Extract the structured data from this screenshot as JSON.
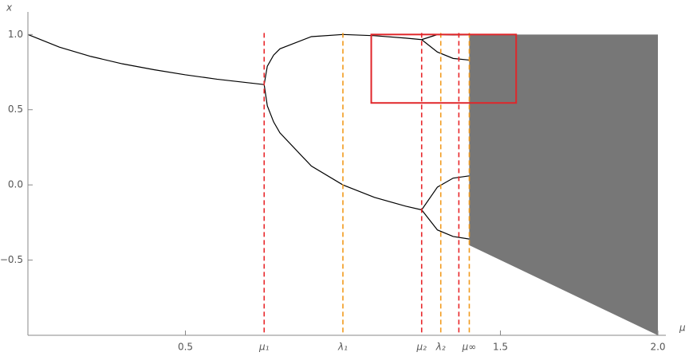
{
  "chart_data": {
    "type": "line",
    "x_label": "μ",
    "y_label": "x",
    "xlim": [
      0,
      2
    ],
    "ylim": [
      -1,
      1.15
    ],
    "xticks": [
      0.5,
      1.5,
      {
        "value": 2,
        "label": "2.0"
      }
    ],
    "yticks": [
      {
        "value": -0.5,
        "label": "−0.5"
      },
      {
        "value": 0,
        "label": "0.0"
      },
      0.5,
      {
        "value": 1,
        "label": "1.0"
      }
    ],
    "series": [
      {
        "color": "#000000",
        "x": [
          0,
          0.1,
          0.2,
          0.3,
          0.4,
          0.5,
          0.6,
          0.75
        ],
        "values": [
          1,
          0.916,
          0.854,
          0.805,
          0.766,
          0.732,
          0.703,
          0.667
        ]
      },
      {
        "color": "#000000",
        "x": [
          0.75,
          0.76,
          0.78,
          0.8,
          0.9,
          1,
          1.1,
          1.2,
          1.25
        ],
        "values": [
          0.667,
          0.789,
          0.863,
          0.905,
          0.986,
          1,
          0.992,
          0.976,
          0.966
        ]
      },
      {
        "color": "#000000",
        "x": [
          0.75,
          0.76,
          0.78,
          0.8,
          0.9,
          1,
          1.1,
          1.2,
          1.25
        ],
        "values": [
          0.667,
          0.526,
          0.419,
          0.346,
          0.125,
          0,
          -0.083,
          -0.142,
          -0.166
        ]
      },
      {
        "color": "#000000",
        "x": [
          1.25,
          1.3,
          1.35,
          1.401
        ],
        "values": [
          0.966,
          0.9997,
          0.997,
          0.998
        ]
      },
      {
        "color": "#000000",
        "x": [
          1.25,
          1.3,
          1.35,
          1.401
        ],
        "values": [
          0.966,
          0.8835,
          0.841,
          0.83
        ]
      },
      {
        "color": "#000000",
        "x": [
          1.25,
          1.3,
          1.35,
          1.401
        ],
        "values": [
          -0.166,
          -0.0148,
          0.045,
          0.06
        ]
      },
      {
        "color": "#000000",
        "x": [
          1.25,
          1.3,
          1.35,
          1.401
        ],
        "values": [
          -0.166,
          -0.2994,
          -0.343,
          -0.36
        ]
      }
    ],
    "band": {
      "color": "#4a4a4a",
      "x": [
        1.401,
        2
      ],
      "lower": [
        -0.401,
        -1
      ],
      "upper": [
        1,
        1
      ]
    },
    "vlines": [
      {
        "x": 0.75,
        "color": "#e8262a",
        "label": "μ₁"
      },
      {
        "x": 1,
        "color": "#f29a1c",
        "label": "λ₁"
      },
      {
        "x": 1.25,
        "color": "#e8262a",
        "label": "μ₂"
      },
      {
        "x": 1.3107,
        "color": "#f29a1c",
        "label": "λ₂"
      },
      {
        "x": 1.3681,
        "color": "#e8262a"
      },
      {
        "x": 1.4012,
        "color": "#f29a1c",
        "label": "μ∞"
      }
    ],
    "highlight": {
      "color": "#e0262a",
      "xlim": [
        1.09,
        1.55
      ],
      "ylim": [
        0.545,
        1.0
      ]
    }
  }
}
